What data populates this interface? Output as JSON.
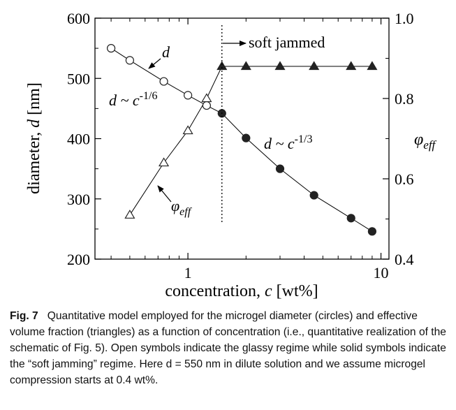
{
  "chart_data": {
    "type": "scatter",
    "x_scale": "log",
    "xlabel": "concentration, c [wt%]",
    "ylabel_left": "diameter, d [nm]",
    "ylabel_right": "φeff",
    "xlim": [
      0.33,
      11
    ],
    "ylim_left": [
      200,
      600
    ],
    "ylim_right": [
      0.4,
      1.0
    ],
    "x_ticks": [
      1,
      10
    ],
    "y_ticks_left": [
      200,
      300,
      400,
      500,
      600
    ],
    "y_ticks_right": [
      0.4,
      0.6,
      0.8,
      1.0
    ],
    "grid": false,
    "series": [
      {
        "axis": "left",
        "marker": "circle",
        "x": [
          0.4,
          0.5,
          0.75,
          1.0,
          1.25,
          1.5,
          2.0,
          3.0,
          4.5,
          7.0,
          9.0
        ],
        "y": [
          550,
          530,
          495,
          472,
          455,
          442,
          401,
          350,
          306,
          268,
          246
        ],
        "filled": [
          false,
          false,
          false,
          false,
          false,
          true,
          true,
          true,
          true,
          true,
          true
        ]
      },
      {
        "axis": "right",
        "marker": "triangle",
        "x": [
          0.5,
          0.75,
          1.0,
          1.25,
          1.5,
          2.0,
          3.0,
          4.5,
          7.0,
          9.0
        ],
        "y": [
          0.51,
          0.64,
          0.72,
          0.8,
          0.88,
          0.88,
          0.88,
          0.88,
          0.88,
          0.88
        ],
        "filled": [
          false,
          false,
          false,
          false,
          true,
          true,
          true,
          true,
          true,
          true
        ]
      }
    ],
    "vline_x": 1.5,
    "annotations": {
      "soft_jammed": "soft jammed",
      "d_label": "d",
      "d_power_low": "d ~ c",
      "exp_low": "-1/6",
      "d_power_high": "d ~ c",
      "exp_high": "-1/3",
      "phi_symbol": "φ",
      "phi_sub": "eff"
    }
  },
  "caption": {
    "label": "Fig. 7",
    "text": "Quantitative model employed for the microgel diameter (circles) and effective volume fraction (triangles) as a function of concentration (i.e., quantitative realization of the schematic of Fig. 5). Open symbols indicate the glassy regime while solid symbols indicate the “soft jamming” regime. Here d = 550 nm in dilute solution and we assume microgel compression starts at 0.4 wt%."
  }
}
